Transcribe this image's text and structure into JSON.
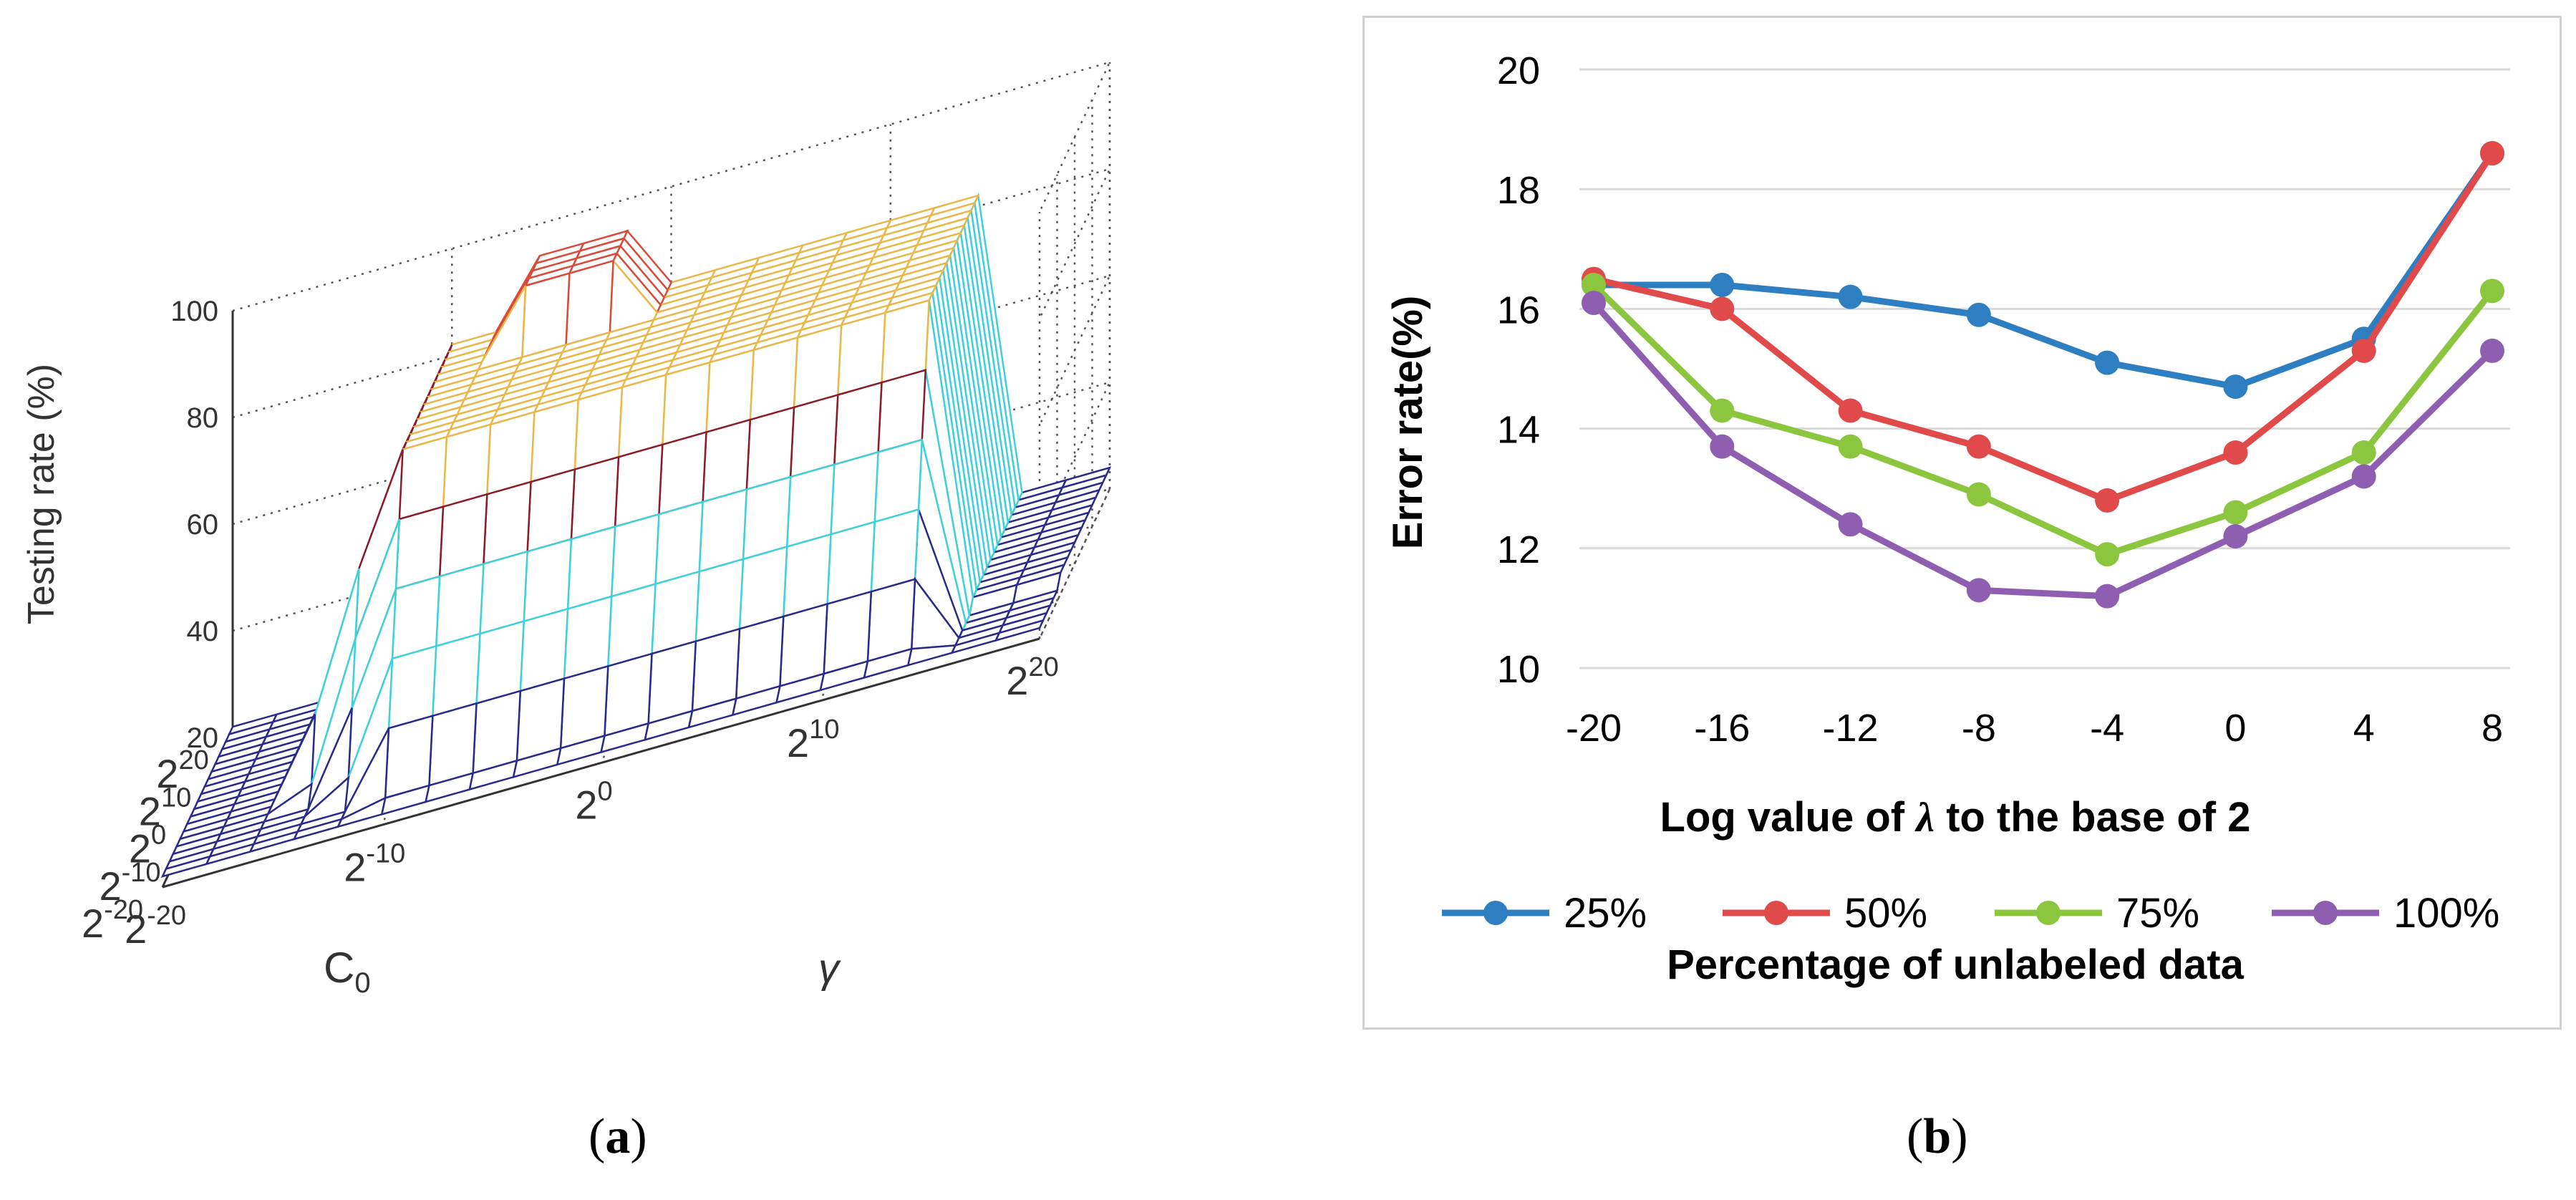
{
  "captions": {
    "a_open": "(",
    "a_letter": "a",
    "a_close": ")",
    "b_open": "(",
    "b_letter": "b",
    "b_close": ")"
  },
  "colors": {
    "series_25": "#2e7fc2",
    "series_50": "#e04a4a",
    "series_75": "#8cc63f",
    "series_100": "#8e5fb0",
    "grid": "#d9d9d9"
  },
  "chart_data": [
    {
      "type": "surface3d",
      "zlabel": "Testing rate (%)",
      "xlabel": "C",
      "xlabel_sub": "0",
      "ylabel": "γ",
      "z_ticks": [
        "20",
        "40",
        "60",
        "80",
        "100"
      ],
      "x_ticks": [
        {
          "base": "2",
          "exp": "20"
        },
        {
          "base": "2",
          "exp": "10"
        },
        {
          "base": "2",
          "exp": "0"
        },
        {
          "base": "2",
          "exp": "-10"
        },
        {
          "base": "2",
          "exp": "-20"
        }
      ],
      "y_ticks": [
        {
          "base": "2",
          "exp": "-20"
        },
        {
          "base": "2",
          "exp": "-10"
        },
        {
          "base": "2",
          "exp": "0"
        },
        {
          "base": "2",
          "exp": "10"
        },
        {
          "base": "2",
          "exp": "20"
        }
      ],
      "zlim": [
        20,
        100
      ]
    },
    {
      "type": "line",
      "xlabel_prefix": "Log value of ",
      "xlabel_symbol": "λ",
      "xlabel_suffix": " to the base of 2",
      "ylabel": "Error rate(%)",
      "legend_title": "Percentage of unlabeled data",
      "legend_position": "bottom",
      "x": [
        -20,
        -16,
        -12,
        -8,
        -4,
        0,
        4,
        8
      ],
      "x_tick_labels": [
        "-20",
        "-16",
        "-12",
        "-8",
        "-4",
        "0",
        "4",
        "8"
      ],
      "y_ticks": [
        "10",
        "12",
        "14",
        "16",
        "18",
        "20"
      ],
      "ylim": [
        10,
        20
      ],
      "grid": true,
      "series": [
        {
          "name": "25%",
          "values": [
            16.4,
            16.4,
            16.2,
            15.9,
            15.1,
            14.7,
            15.5,
            18.6
          ]
        },
        {
          "name": "50%",
          "values": [
            16.5,
            16.0,
            14.3,
            13.7,
            12.8,
            13.6,
            15.3,
            18.6
          ]
        },
        {
          "name": "75%",
          "values": [
            16.4,
            14.3,
            13.7,
            12.9,
            11.9,
            12.6,
            13.6,
            16.3
          ]
        },
        {
          "name": "100%",
          "values": [
            16.1,
            13.7,
            12.4,
            11.3,
            11.2,
            12.2,
            13.2,
            15.3
          ]
        }
      ]
    }
  ]
}
